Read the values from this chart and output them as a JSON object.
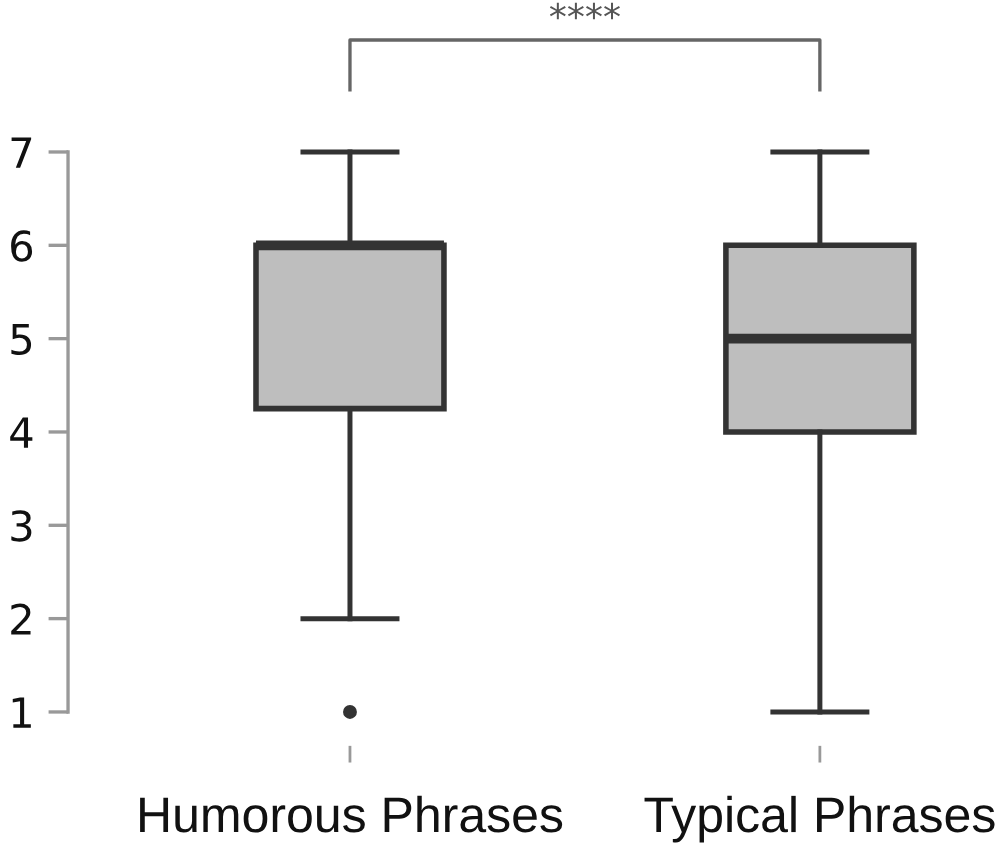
{
  "chart_data": {
    "type": "box",
    "categories": [
      "Humorous Phrases",
      "Typical Phrases"
    ],
    "series": [
      {
        "color": "#bebebe",
        "boxes": [
          {
            "low": 2,
            "q1": 4.25,
            "median": 6,
            "q3": 6,
            "high": 7,
            "outliers": [
              1
            ]
          },
          {
            "low": 1,
            "q1": 4,
            "median": 5,
            "q3": 6,
            "high": 7
          }
        ]
      }
    ],
    "ylim": [
      1,
      7
    ],
    "yticks": [
      1,
      2,
      3,
      4,
      5,
      6,
      7
    ],
    "annotations": [
      "****"
    ]
  }
}
